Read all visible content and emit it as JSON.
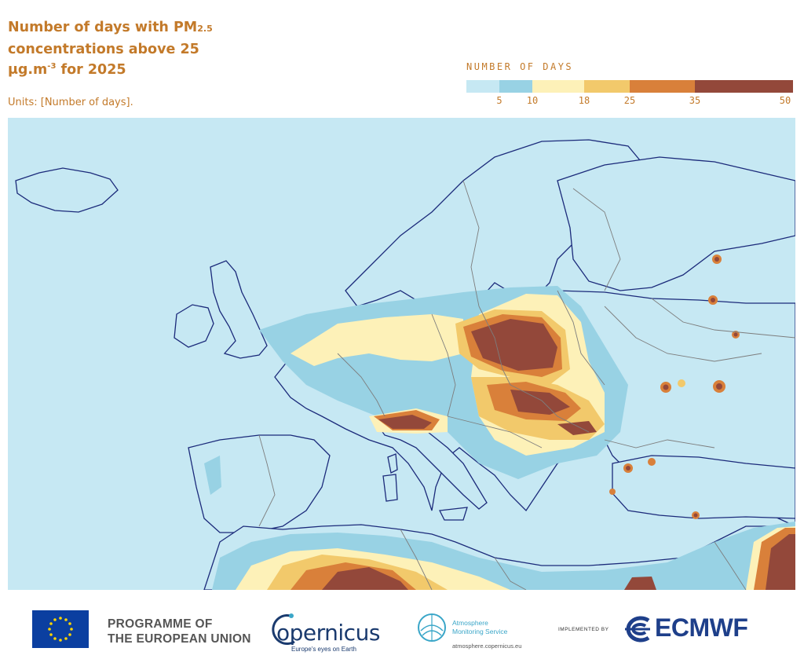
{
  "title": {
    "line1_prefix": "Number of days with PM",
    "line1_sub": "2.5",
    "line2": "concentrations above 25",
    "line3_unit": "μg.m",
    "line3_sup": "-3",
    "line3_suffix": " for 2025"
  },
  "units_label": "Units: [Number of days].",
  "legend": {
    "title": "NUMBER OF DAYS",
    "bins": [
      {
        "from": 0,
        "to": 5,
        "color": "#c6e8f3"
      },
      {
        "from": 5,
        "to": 10,
        "color": "#98d2e4"
      },
      {
        "from": 10,
        "to": 18,
        "color": "#fdf1b8"
      },
      {
        "from": 18,
        "to": 25,
        "color": "#f2c96b"
      },
      {
        "from": 25,
        "to": 35,
        "color": "#d9803a"
      },
      {
        "from": 35,
        "to": 50,
        "color": "#93483a"
      }
    ],
    "ticks": [
      "5",
      "10",
      "18",
      "25",
      "35",
      "50"
    ]
  },
  "map": {
    "region": "Europe",
    "ocean_color": "#c6e8f3",
    "coastline_color": "#1b2a7a",
    "border_color": "#7d7d7d"
  },
  "footer": {
    "eu_line1": "PROGRAMME OF",
    "eu_line2": "THE EUROPEAN UNION",
    "copernicus": "opernicus",
    "copernicus_tagline": "Europe's eyes on Earth",
    "ams_line1": "Atmosphere",
    "ams_line2": "Monitoring Service",
    "ams_url": "atmosphere.copernicus.eu",
    "implemented_by": "IMPLEMENTED BY",
    "ecmwf": "ECMWF"
  }
}
